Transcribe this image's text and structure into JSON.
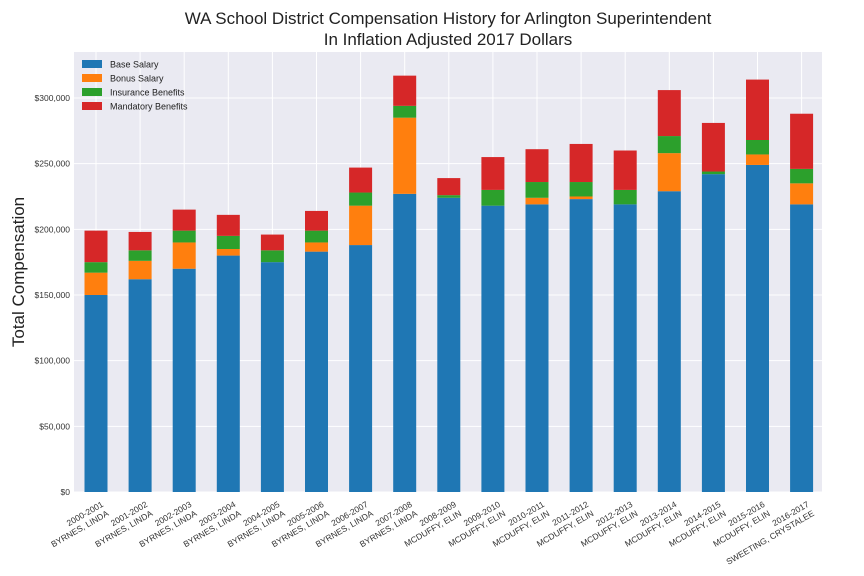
{
  "chart_data": {
    "type": "bar",
    "stacked": true,
    "title": "WA School District Compensation History for Arlington Superintendent",
    "subtitle": "In Inflation Adjusted 2017 Dollars",
    "xlabel": "",
    "ylabel": "Total Compensation",
    "ylim": [
      0,
      335000
    ],
    "yticks": [
      0,
      50000,
      100000,
      150000,
      200000,
      250000,
      300000
    ],
    "ytick_labels": [
      "$0",
      "$50,000",
      "$100,000",
      "$150,000",
      "$200,000",
      "$250,000",
      "$300,000"
    ],
    "grid": true,
    "legend_position": "top-left",
    "categories": [
      "2000-2001\nBYRNES, LINDA",
      "2001-2002\nBYRNES, LINDA",
      "2002-2003\nBYRNES, LINDA",
      "2003-2004\nBYRNES, LINDA",
      "2004-2005\nBYRNES, LINDA",
      "2005-2006\nBYRNES, LINDA",
      "2006-2007\nBYRNES, LINDA",
      "2007-2008\nBYRNES, LINDA",
      "2008-2009\nMCDUFFY, ELIN",
      "2009-2010\nMCDUFFY, ELIN",
      "2010-2011\nMCDUFFY, ELIN",
      "2011-2012\nMCDUFFY, ELIN",
      "2012-2013\nMCDUFFY, ELIN",
      "2013-2014\nMCDUFFY, ELIN",
      "2014-2015\nMCDUFFY, ELIN",
      "2015-2016\nMCDUFFY, ELIN",
      "2016-2017\nSWEETING, CRYSTALEE"
    ],
    "series": [
      {
        "name": "Base Salary",
        "color": "#1f77b4",
        "values": [
          150000,
          162000,
          170000,
          180000,
          175000,
          183000,
          188000,
          227000,
          224000,
          218000,
          219000,
          223000,
          219000,
          229000,
          242000,
          249000,
          219000
        ]
      },
      {
        "name": "Bonus Salary",
        "color": "#ff7f0e",
        "values": [
          17000,
          14000,
          20000,
          5000,
          0,
          7000,
          30000,
          58000,
          0,
          0,
          5000,
          2000,
          0,
          29000,
          0,
          8000,
          16000
        ]
      },
      {
        "name": "Insurance Benefits",
        "color": "#2ca02c",
        "values": [
          8000,
          8000,
          9000,
          10000,
          9000,
          9000,
          10000,
          9000,
          2000,
          12000,
          12000,
          11000,
          11000,
          13000,
          2000,
          11000,
          11000
        ]
      },
      {
        "name": "Mandatory Benefits",
        "color": "#d62728",
        "values": [
          24000,
          14000,
          16000,
          16000,
          12000,
          15000,
          19000,
          23000,
          13000,
          25000,
          25000,
          29000,
          30000,
          35000,
          37000,
          46000,
          42000
        ]
      }
    ]
  }
}
